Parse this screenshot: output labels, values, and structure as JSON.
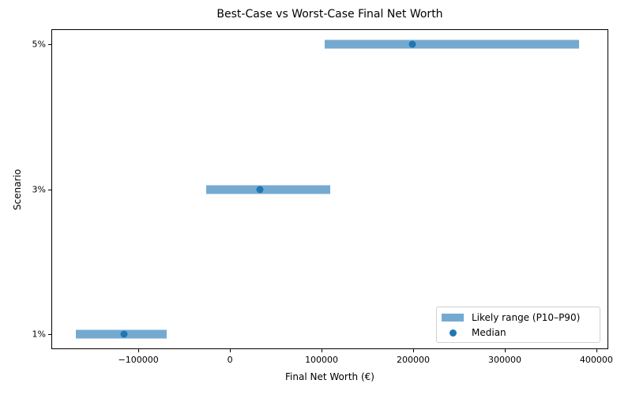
{
  "chart_data": {
    "type": "range",
    "title": "Best-Case vs Worst-Case Final Net Worth",
    "xlabel": "Final Net Worth (€)",
    "ylabel": "Scenario",
    "categories": [
      "1%",
      "3%",
      "5%"
    ],
    "series": [
      {
        "name": "Likely range (P10–P90)",
        "low": [
          -168000,
          -26000,
          103500
        ],
        "high": [
          -69000,
          109500,
          381000
        ]
      },
      {
        "name": "Median",
        "values": [
          -115500,
          33000,
          199000
        ]
      }
    ],
    "xlim": [
      -195000,
      413000
    ],
    "xticks": [
      -100000,
      0,
      100000,
      200000,
      300000,
      400000
    ],
    "xtick_labels": [
      "−100000",
      "0",
      "100000",
      "200000",
      "300000",
      "400000"
    ],
    "grid": false,
    "legend_position": "lower right",
    "colors": {
      "range": "#75aad0",
      "median": "#1f77b4"
    }
  },
  "legend": {
    "range_label": "Likely range (P10–P90)",
    "median_label": "Median"
  }
}
